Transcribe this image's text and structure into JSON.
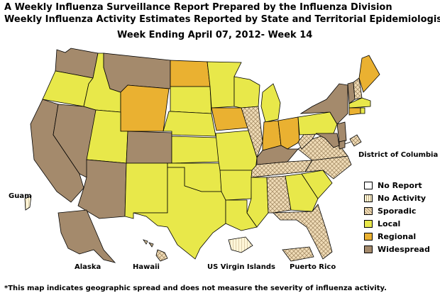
{
  "header": {
    "title1": "A Weekly Influenza Surveillance Report Prepared by the Influenza Division",
    "title2": "Weekly Influenza Activity Estimates Reported by State and Territorial Epidemiologists*",
    "week": "Week Ending April 07, 2012- Week 14"
  },
  "labels": {
    "district": "District of Columbia",
    "guam": "Guam",
    "alaska": "Alaska",
    "hawaii": "Hawaii",
    "virgin": "US Virgin Islands",
    "puerto": "Puerto Rico"
  },
  "colors": {
    "no_report": "#ffffff",
    "no_activity": "#fff6d8",
    "sporadic": "#f1ddb8",
    "local": "#e8e84a",
    "regional": "#eab131",
    "widespread": "#a48a6c",
    "border": "#000000"
  },
  "legend": [
    {
      "label": "No Report",
      "key": "no_report"
    },
    {
      "label": "No Activity",
      "key": "no_activity"
    },
    {
      "label": "Sporadic",
      "key": "sporadic"
    },
    {
      "label": "Local",
      "key": "local"
    },
    {
      "label": "Regional",
      "key": "regional"
    },
    {
      "label": "Widespread",
      "key": "widespread"
    }
  ],
  "states": {
    "WA": "widespread",
    "OR": "local",
    "CA": "widespread",
    "NV": "widespread",
    "ID": "local",
    "MT": "widespread",
    "WY": "regional",
    "UT": "local",
    "AZ": "widespread",
    "CO": "widespread",
    "NM": "local",
    "ND": "regional",
    "SD": "local",
    "NE": "local",
    "KS": "local",
    "OK": "local",
    "TX": "local",
    "MN": "local",
    "IA": "regional",
    "MO": "local",
    "AR": "local",
    "LA": "local",
    "WI": "local",
    "IL": "sporadic",
    "IN": "regional",
    "MI": "local",
    "OH": "regional",
    "KY": "widespread",
    "TN": "sporadic",
    "MS": "local",
    "AL": "sporadic",
    "GA": "local",
    "FL": "sporadic",
    "SC": "local",
    "NC": "sporadic",
    "VA": "sporadic",
    "WV": "sporadic",
    "PA": "local",
    "NY": "widespread",
    "VT": "widespread",
    "NH": "sporadic",
    "ME": "regional",
    "MA": "local",
    "CT": "regional",
    "RI": "local",
    "NJ": "widespread",
    "DE": "widespread",
    "MD": "widespread",
    "DC": "sporadic",
    "AK": "widespread",
    "HI": "sporadic",
    "GU": "no_activity",
    "VI": "no_activity",
    "PR": "sporadic"
  },
  "footnote": "*This map indicates geographic spread and does not measure the severity of influenza activity."
}
